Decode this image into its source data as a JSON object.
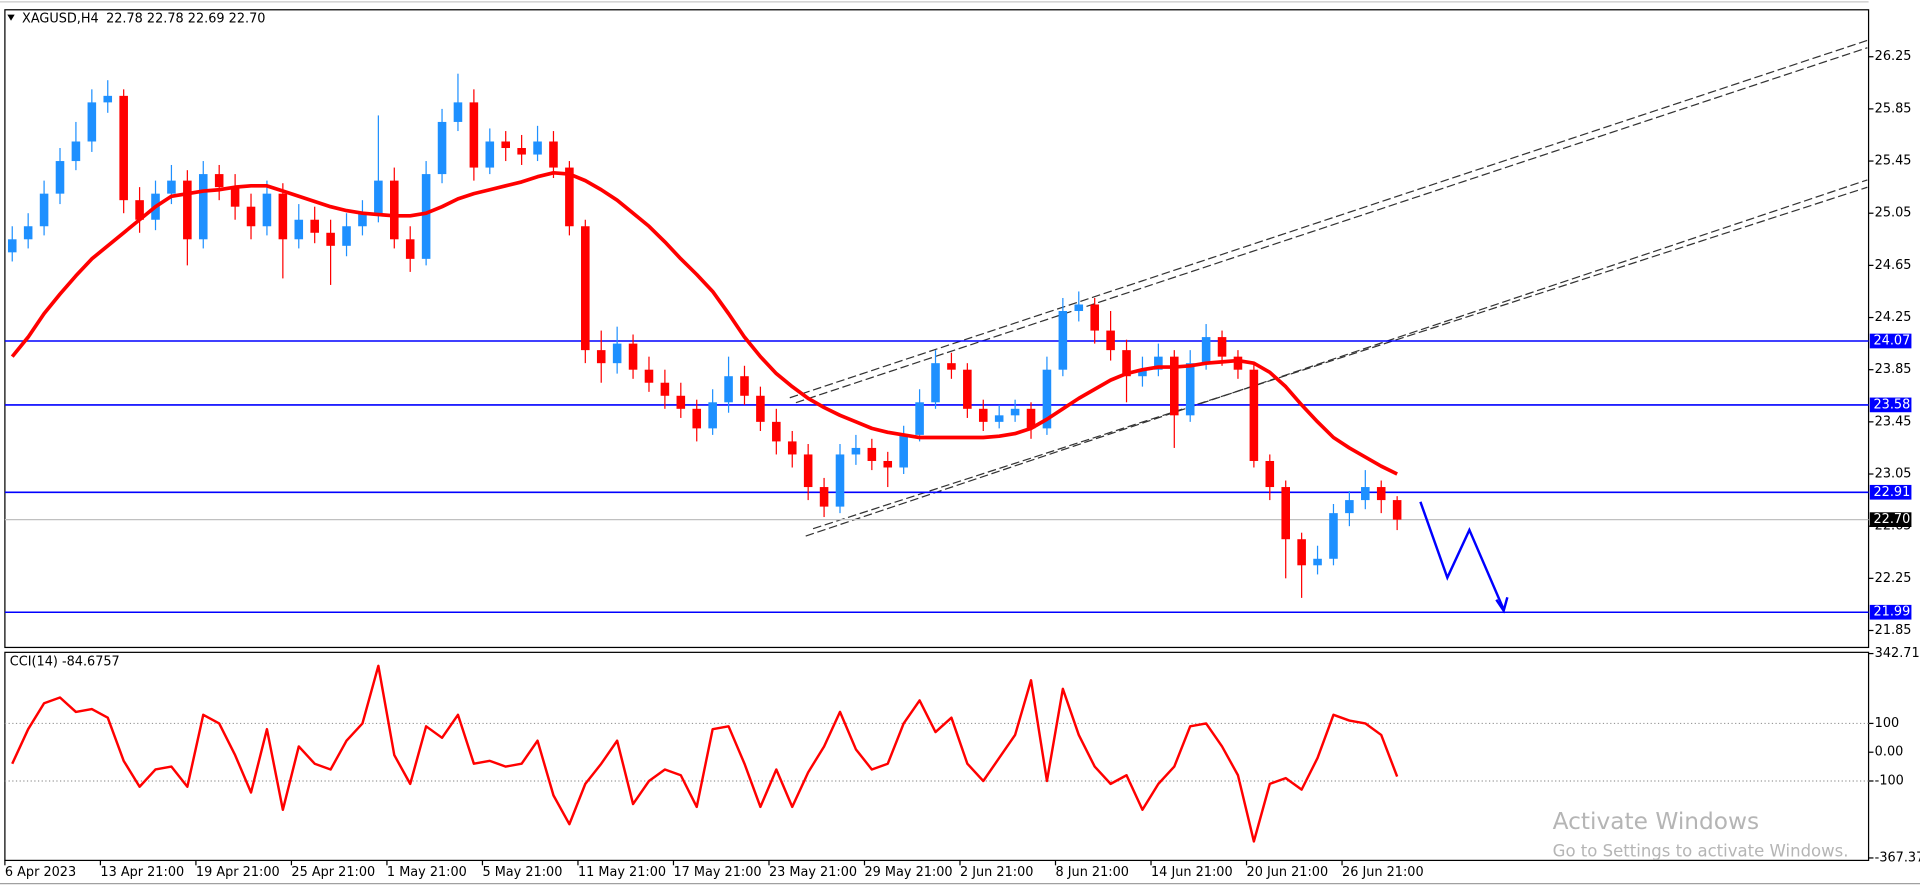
{
  "chart_data": [
    {
      "type": "candlestick",
      "title": "XAGUSD,H4",
      "subtitle": "22.78 22.78 22.69 22.70",
      "categories": [
        "6 Apr 2023",
        null,
        null,
        null,
        null,
        null,
        "13 Apr 21:00",
        null,
        null,
        null,
        null,
        null,
        "19 Apr 21:00",
        null,
        null,
        null,
        null,
        null,
        "25 Apr 21:00",
        null,
        null,
        null,
        null,
        null,
        "1 May 21:00",
        null,
        null,
        null,
        null,
        null,
        "5 May 21:00",
        null,
        null,
        null,
        null,
        null,
        "11 May 21:00",
        null,
        null,
        null,
        null,
        null,
        "17 May 21:00",
        null,
        null,
        null,
        null,
        null,
        "23 May 21:00",
        null,
        null,
        null,
        null,
        null,
        "29 May 21:00",
        null,
        null,
        null,
        null,
        null,
        "2 Jun 21:00",
        null,
        null,
        null,
        null,
        null,
        "8 Jun 21:00",
        null,
        null,
        null,
        null,
        null,
        "14 Jun 21:00",
        null,
        null,
        null,
        null,
        null,
        "20 Jun 21:00",
        null,
        null,
        null,
        null,
        null,
        "26 Jun 21:00",
        null,
        null,
        null
      ],
      "open": [
        24.75,
        24.85,
        24.95,
        25.2,
        25.45,
        25.6,
        25.9,
        25.95,
        25.15,
        25.0,
        25.2,
        25.3,
        24.85,
        25.35,
        25.25,
        25.1,
        24.95,
        25.2,
        24.85,
        25.0,
        24.9,
        24.8,
        24.95,
        25.05,
        25.3,
        24.85,
        24.7,
        25.35,
        25.75,
        25.9,
        25.4,
        25.6,
        25.55,
        25.5,
        25.6,
        25.4,
        24.95,
        24.0,
        23.9,
        24.05,
        23.85,
        23.75,
        23.65,
        23.55,
        23.4,
        23.6,
        23.8,
        23.65,
        23.45,
        23.3,
        23.2,
        22.95,
        22.8,
        23.2,
        23.25,
        23.15,
        23.1,
        23.35,
        23.6,
        23.9,
        23.85,
        23.55,
        23.45,
        23.5,
        23.55,
        23.4,
        23.85,
        24.3,
        24.35,
        24.15,
        24.0,
        23.8,
        23.85,
        23.95,
        23.5,
        23.9,
        24.1,
        23.95,
        23.85,
        23.15,
        22.95,
        22.55,
        22.35,
        22.4,
        22.75,
        22.85,
        22.95,
        22.85
      ],
      "high": [
        24.95,
        25.05,
        25.3,
        25.55,
        25.75,
        26.0,
        26.07,
        26.0,
        25.25,
        25.3,
        25.42,
        25.38,
        25.45,
        25.42,
        25.35,
        25.2,
        25.3,
        25.28,
        25.12,
        25.1,
        25.0,
        25.05,
        25.15,
        25.8,
        25.4,
        24.95,
        25.45,
        25.85,
        26.12,
        26.0,
        25.7,
        25.68,
        25.65,
        25.72,
        25.68,
        25.45,
        25.0,
        24.15,
        24.18,
        24.12,
        23.95,
        23.85,
        23.75,
        23.62,
        23.7,
        23.95,
        23.88,
        23.72,
        23.55,
        23.38,
        23.28,
        23.02,
        23.28,
        23.35,
        23.32,
        23.22,
        23.42,
        23.7,
        24.0,
        23.98,
        23.9,
        23.62,
        23.58,
        23.62,
        23.6,
        23.95,
        24.4,
        24.45,
        24.4,
        24.3,
        24.08,
        23.95,
        24.05,
        24.0,
        24.0,
        24.2,
        24.15,
        24.0,
        23.9,
        23.2,
        23.0,
        22.6,
        22.5,
        22.82,
        22.92,
        23.08,
        23.0,
        22.88
      ],
      "low": [
        24.68,
        24.78,
        24.88,
        25.12,
        25.38,
        25.52,
        25.82,
        25.05,
        24.9,
        24.92,
        25.12,
        24.65,
        24.78,
        25.15,
        25.0,
        24.85,
        24.88,
        24.55,
        24.78,
        24.82,
        24.5,
        24.72,
        24.88,
        24.98,
        24.78,
        24.6,
        24.65,
        25.28,
        25.68,
        25.3,
        25.35,
        25.45,
        25.42,
        25.45,
        25.32,
        24.88,
        23.9,
        23.75,
        23.82,
        23.78,
        23.68,
        23.55,
        23.48,
        23.3,
        23.35,
        23.52,
        23.58,
        23.38,
        23.2,
        23.1,
        22.85,
        22.72,
        22.75,
        23.12,
        23.08,
        22.95,
        23.05,
        23.3,
        23.55,
        23.78,
        23.48,
        23.38,
        23.4,
        23.45,
        23.32,
        23.35,
        23.8,
        24.22,
        24.05,
        23.92,
        23.6,
        23.72,
        23.8,
        23.25,
        23.45,
        23.85,
        23.88,
        23.78,
        23.1,
        22.85,
        22.25,
        22.1,
        22.28,
        22.35,
        22.65,
        22.78,
        22.75,
        22.62
      ],
      "close": [
        24.85,
        24.95,
        25.2,
        25.45,
        25.6,
        25.9,
        25.95,
        25.15,
        25.0,
        25.2,
        25.3,
        24.85,
        25.35,
        25.25,
        25.1,
        24.95,
        25.2,
        24.85,
        25.0,
        24.9,
        24.8,
        24.95,
        25.05,
        25.3,
        24.85,
        24.7,
        25.35,
        25.75,
        25.9,
        25.4,
        25.6,
        25.55,
        25.5,
        25.6,
        25.4,
        24.95,
        24.0,
        23.9,
        24.05,
        23.85,
        23.75,
        23.65,
        23.55,
        23.4,
        23.6,
        23.8,
        23.65,
        23.45,
        23.3,
        23.2,
        22.95,
        22.8,
        23.2,
        23.25,
        23.15,
        23.1,
        23.35,
        23.6,
        23.9,
        23.85,
        23.55,
        23.45,
        23.5,
        23.55,
        23.4,
        23.85,
        24.3,
        24.35,
        24.15,
        24.0,
        23.8,
        23.85,
        23.95,
        23.5,
        23.9,
        24.1,
        23.95,
        23.85,
        23.15,
        22.95,
        22.55,
        22.35,
        22.4,
        22.75,
        22.85,
        22.95,
        22.85,
        22.7
      ],
      "up_color": "#1e90ff",
      "down_color": "#ff0000",
      "series": [
        {
          "color": "#ff0000",
          "values": [
            23.95,
            24.1,
            24.28,
            24.43,
            24.57,
            24.7,
            24.8,
            24.9,
            25.0,
            25.1,
            25.18,
            25.2,
            25.22,
            25.23,
            25.25,
            25.26,
            25.26,
            25.22,
            25.18,
            25.14,
            25.1,
            25.07,
            25.05,
            25.04,
            25.03,
            25.03,
            25.05,
            25.1,
            25.16,
            25.2,
            25.23,
            25.26,
            25.29,
            25.33,
            25.36,
            25.35,
            25.3,
            25.23,
            25.15,
            25.05,
            24.95,
            24.83,
            24.7,
            24.58,
            24.45,
            24.28,
            24.1,
            23.95,
            23.82,
            23.72,
            23.63,
            23.56,
            23.5,
            23.45,
            23.4,
            23.37,
            23.35,
            23.33,
            23.33,
            23.33,
            23.33,
            23.33,
            23.34,
            23.36,
            23.4,
            23.47,
            23.55,
            23.63,
            23.7,
            23.77,
            23.82,
            23.85,
            23.87,
            23.87,
            23.88,
            23.9,
            23.91,
            23.92,
            23.9,
            23.83,
            23.72,
            23.58,
            23.45,
            23.33,
            23.25,
            23.18,
            23.11,
            23.05
          ]
        }
      ],
      "ylim": [
        21.72,
        26.61
      ],
      "yticks": [
        26.25,
        25.85,
        25.45,
        25.05,
        24.65,
        24.25,
        23.85,
        23.45,
        23.05,
        22.65,
        22.25,
        21.85
      ],
      "levels": {
        "color": "#0000ff",
        "values": [
          24.07,
          23.58,
          22.91,
          21.99
        ]
      },
      "last_price": {
        "value": 22.7,
        "label": "22.70"
      }
    },
    {
      "type": "line",
      "title": "CCI(14) -84.6757",
      "series": [
        {
          "color": "#ff0000",
          "values": [
            -40,
            80,
            170,
            190,
            140,
            150,
            120,
            -30,
            -120,
            -60,
            -50,
            -120,
            130,
            100,
            -10,
            -140,
            80,
            -200,
            20,
            -40,
            -60,
            40,
            100,
            300,
            -10,
            -110,
            90,
            50,
            130,
            -40,
            -30,
            -50,
            -40,
            40,
            -150,
            -250,
            -110,
            -40,
            40,
            -180,
            -100,
            -60,
            -80,
            -190,
            80,
            90,
            -40,
            -190,
            -60,
            -190,
            -70,
            20,
            140,
            10,
            -60,
            -40,
            100,
            180,
            70,
            120,
            -40,
            -100,
            -20,
            60,
            250,
            -100,
            220,
            60,
            -50,
            -110,
            -80,
            -200,
            -110,
            -50,
            90,
            100,
            20,
            -80,
            -310,
            -110,
            -90,
            -130,
            -20,
            130,
            110,
            100,
            60,
            -84.6757
          ]
        }
      ],
      "ylim": [
        -367.374,
        342.715
      ],
      "yticks": [
        342.715,
        100,
        {
          "value": 0,
          "label": "0.00"
        },
        -100,
        -367.374
      ],
      "levels": [
        100,
        -100
      ]
    }
  ],
  "watermark": [
    "Activate Windows",
    "Go to Settings to activate Windows."
  ]
}
